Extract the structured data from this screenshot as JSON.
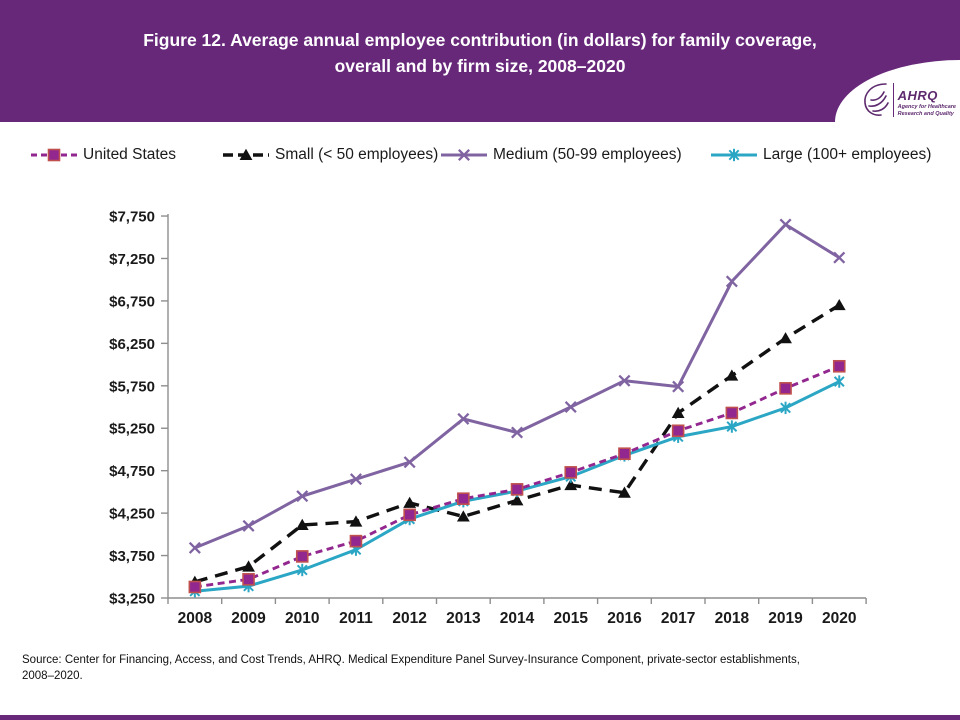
{
  "header": {
    "title": "Figure 12. Average annual employee contribution (in dollars) for family coverage, overall and by firm size, 2008–2020",
    "logo": {
      "wordmark": "AHRQ",
      "tagline_line1": "Agency for Healthcare",
      "tagline_line2": "Research and Quality"
    }
  },
  "colors": {
    "header_purple": "#67287a",
    "axis_gray": "#8e8e8e",
    "label_black": "#1a1a1a"
  },
  "chart_data": {
    "type": "line",
    "title": "Figure 12. Average annual employee contribution (in dollars) for family coverage, overall and by firm size, 2008–2020",
    "xlabel": "",
    "ylabel": "",
    "ylim": [
      3250,
      7750
    ],
    "ytick_step": 500,
    "yticks": [
      "$3,250",
      "$3,750",
      "$4,250",
      "$4,750",
      "$5,250",
      "$5,750",
      "$6,250",
      "$6,750",
      "$7,250",
      "$7,750"
    ],
    "grid": false,
    "legend_position": "top",
    "categories": [
      "2008",
      "2009",
      "2010",
      "2011",
      "2012",
      "2013",
      "2014",
      "2015",
      "2016",
      "2017",
      "2018",
      "2019",
      "2020"
    ],
    "series": [
      {
        "name": "United States",
        "color": "#92278f",
        "marker": "square",
        "marker_border": "#c0504d",
        "line": "dashed",
        "values": [
          3380,
          3470,
          3740,
          3920,
          4230,
          4420,
          4530,
          4730,
          4950,
          5220,
          5430,
          5720,
          5980
        ]
      },
      {
        "name": "Small (< 50 employees)",
        "color": "#111111",
        "marker": "triangle",
        "line": "long-dash",
        "values": [
          3440,
          3620,
          4110,
          4150,
          4370,
          4210,
          4400,
          4580,
          4490,
          5430,
          5870,
          6310,
          6700
        ]
      },
      {
        "name": "Medium (50-99 employees)",
        "color": "#8064a2",
        "marker": "x",
        "line": "solid",
        "values": [
          3840,
          4100,
          4450,
          4650,
          4850,
          5360,
          5200,
          5500,
          5810,
          5740,
          6980,
          7650,
          7260
        ]
      },
      {
        "name": "Large (100+ employees)",
        "color": "#2ba6c4",
        "marker": "asterisk",
        "line": "solid",
        "values": [
          3330,
          3390,
          3580,
          3820,
          4180,
          4390,
          4510,
          4680,
          4930,
          5150,
          5270,
          5490,
          5800
        ]
      }
    ]
  },
  "source_note": {
    "line1": "Source: Center for Financing, Access, and Cost Trends, AHRQ. Medical Expenditure Panel Survey-Insurance Component, private-sector establishments,",
    "line2": "2008–2020."
  }
}
